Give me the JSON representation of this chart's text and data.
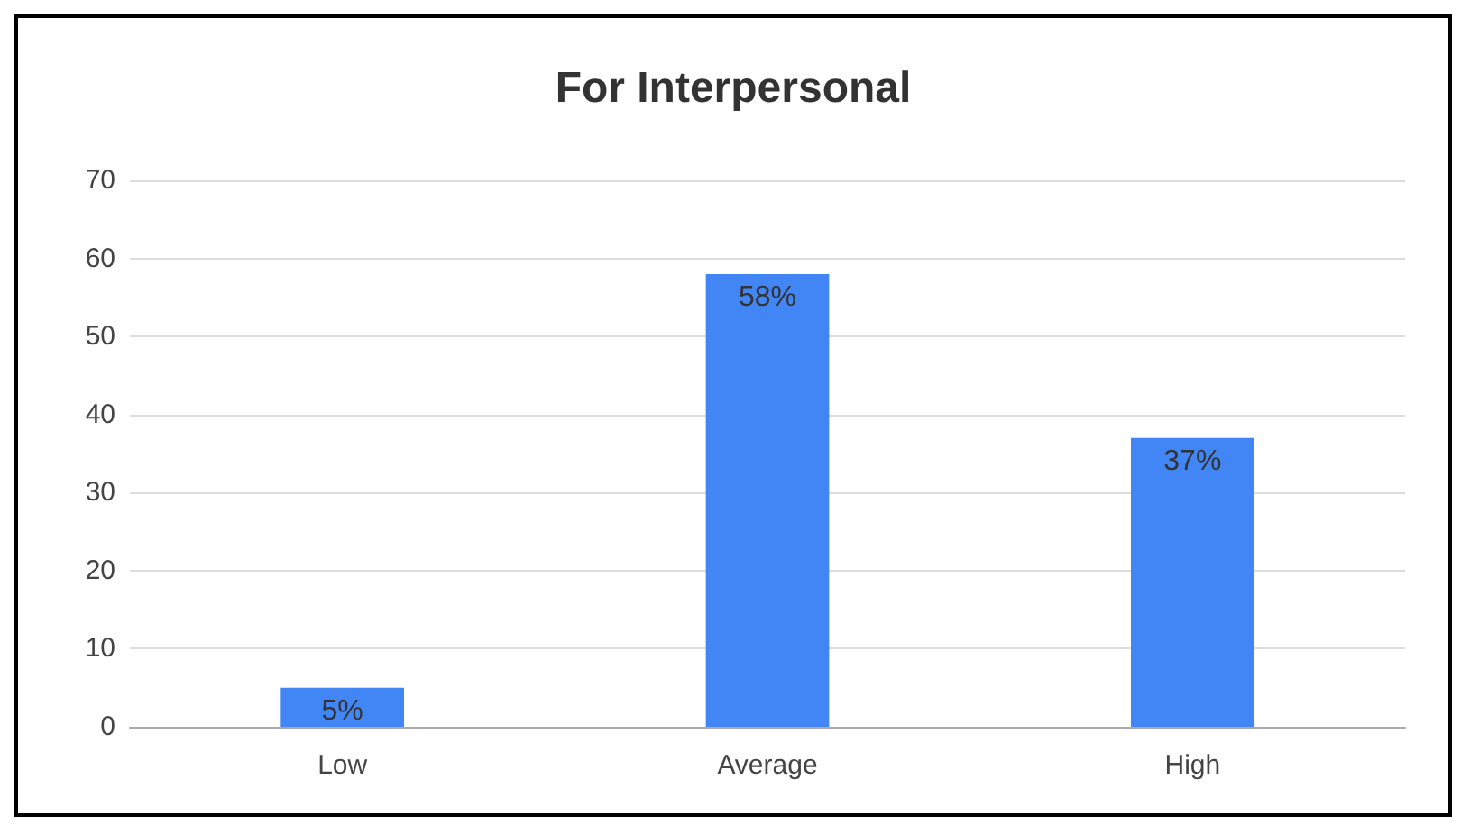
{
  "chart_data": {
    "type": "bar",
    "title": "For Interpersonal",
    "categories": [
      "Low",
      "Average",
      "High"
    ],
    "values": [
      5,
      58,
      37
    ],
    "value_labels": [
      "5%",
      "58%",
      "37%"
    ],
    "color": "#4285f4",
    "ylim": [
      0,
      70
    ],
    "yticks": [
      0,
      10,
      20,
      30,
      40,
      50,
      60,
      70
    ],
    "grid": "y"
  }
}
